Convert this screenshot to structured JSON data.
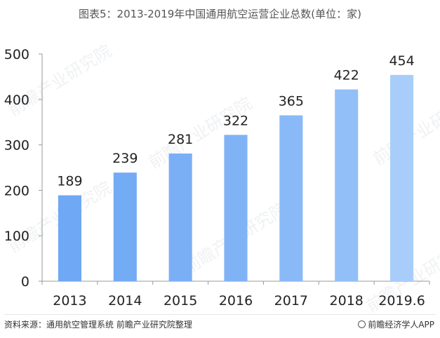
{
  "title": "图表5：2013-2019年中国通用航空运营企业总数(单位：家)",
  "source": "资料来源：通用航空管理系统 前瞻产业研究院整理",
  "brand": "前瞻经济学人APP",
  "watermark": "前瞻产业研究院",
  "chart_data": {
    "type": "bar",
    "title": "图表5：2013-2019年中国通用航空运营企业总数(单位：家)",
    "categories": [
      "2013",
      "2014",
      "2015",
      "2016",
      "2017",
      "2018",
      "2019.6"
    ],
    "values": [
      189,
      239,
      281,
      322,
      365,
      422,
      454
    ],
    "ylim": [
      0,
      500
    ],
    "yticks": [
      0,
      100,
      200,
      300,
      400,
      500
    ],
    "grid": false,
    "legend": "none",
    "colors": [
      "#6fa8f5",
      "#74abf5",
      "#7aaff6",
      "#80b3f6",
      "#89b9f7",
      "#93bff8",
      "#a9cdfa"
    ]
  }
}
